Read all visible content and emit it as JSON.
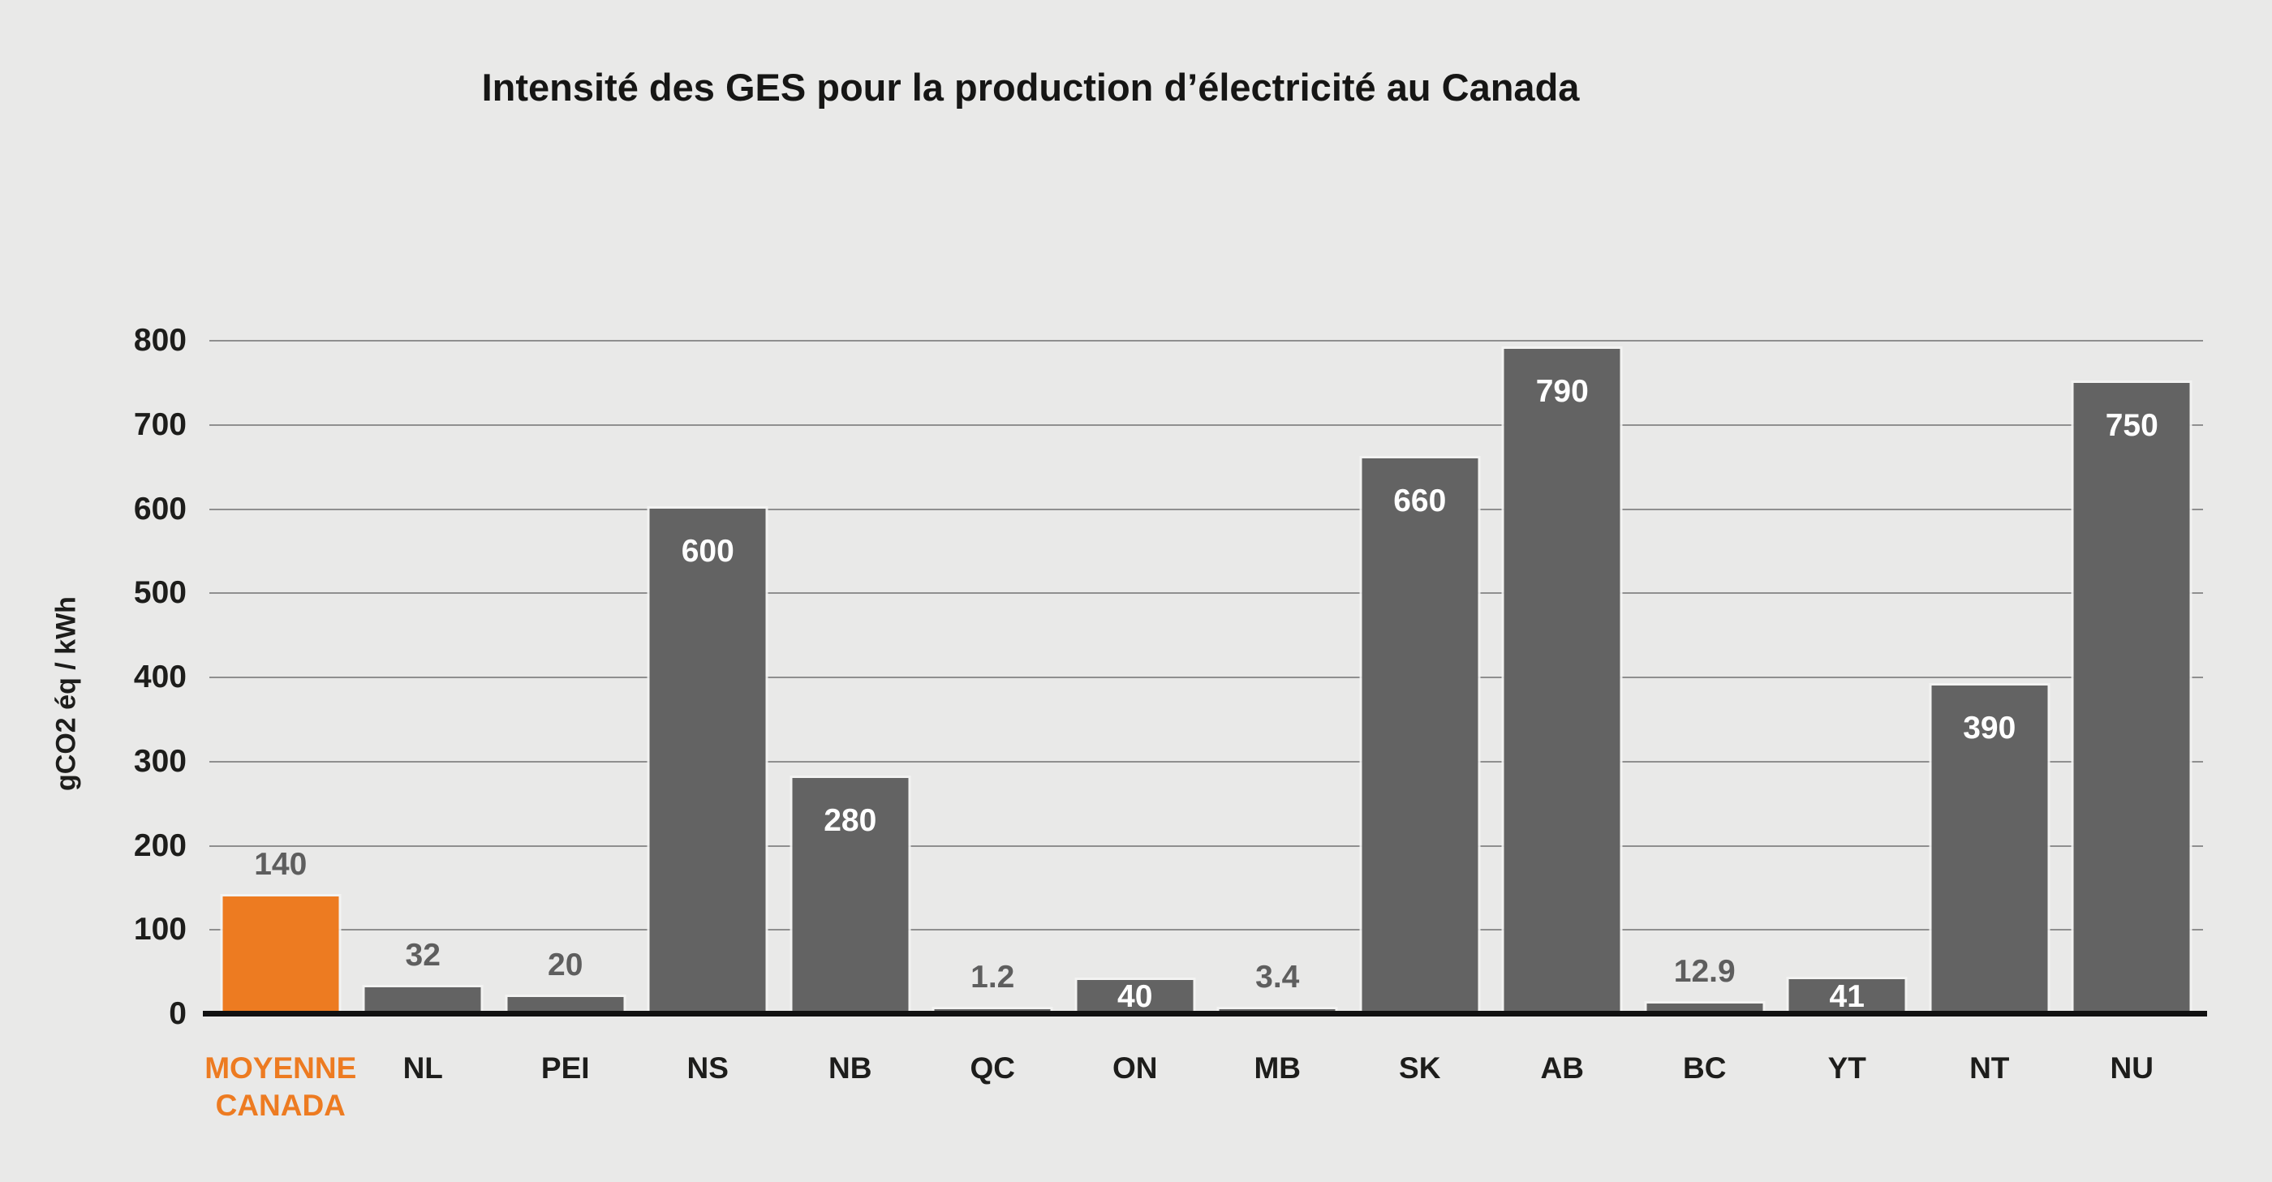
{
  "chart_data": {
    "type": "bar",
    "title": "Intensité des GES pour la production d’électricité au Canada",
    "xlabel": "",
    "ylabel": "gCO2 éq / kWh",
    "ylim": [
      0,
      800
    ],
    "yticks": [
      0,
      100,
      200,
      300,
      400,
      500,
      600,
      700,
      800
    ],
    "grid": true,
    "legend_position": "none",
    "categories": [
      "MOYENNE CANADA",
      "NL",
      "PEI",
      "NS",
      "NB",
      "QC",
      "ON",
      "MB",
      "SK",
      "AB",
      "BC",
      "YT",
      "NT",
      "NU"
    ],
    "values": [
      140,
      32,
      20,
      600,
      280,
      1.2,
      40,
      3.4,
      660,
      790,
      12.9,
      41,
      390,
      750
    ],
    "bars": [
      {
        "category": "MOYENNE CANADA",
        "label_lines": "MOYENNE\nCANADA",
        "value": 140,
        "display": "140",
        "highlight": true,
        "value_label_position": "above"
      },
      {
        "category": "NL",
        "label_lines": "NL",
        "value": 32,
        "display": "32",
        "highlight": false,
        "value_label_position": "above"
      },
      {
        "category": "PEI",
        "label_lines": "PEI",
        "value": 20,
        "display": "20",
        "highlight": false,
        "value_label_position": "above"
      },
      {
        "category": "NS",
        "label_lines": "NS",
        "value": 600,
        "display": "600",
        "highlight": false,
        "value_label_position": "inside"
      },
      {
        "category": "NB",
        "label_lines": "NB",
        "value": 280,
        "display": "280",
        "highlight": false,
        "value_label_position": "inside"
      },
      {
        "category": "QC",
        "label_lines": "QC",
        "value": 1.2,
        "display": "1.2",
        "highlight": false,
        "value_label_position": "above"
      },
      {
        "category": "ON",
        "label_lines": "ON",
        "value": 40,
        "display": "40",
        "highlight": false,
        "value_label_position": "inside"
      },
      {
        "category": "MB",
        "label_lines": "MB",
        "value": 3.4,
        "display": "3.4",
        "highlight": false,
        "value_label_position": "above"
      },
      {
        "category": "SK",
        "label_lines": "SK",
        "value": 660,
        "display": "660",
        "highlight": false,
        "value_label_position": "inside"
      },
      {
        "category": "AB",
        "label_lines": "AB",
        "value": 790,
        "display": "790",
        "highlight": false,
        "value_label_position": "inside"
      },
      {
        "category": "BC",
        "label_lines": "BC",
        "value": 12.9,
        "display": "12.9",
        "highlight": false,
        "value_label_position": "above"
      },
      {
        "category": "YT",
        "label_lines": "YT",
        "value": 41,
        "display": "41",
        "highlight": false,
        "value_label_position": "inside"
      },
      {
        "category": "NT",
        "label_lines": "NT",
        "value": 390,
        "display": "390",
        "highlight": false,
        "value_label_position": "inside"
      },
      {
        "category": "NU",
        "label_lines": "NU",
        "value": 750,
        "display": "750",
        "highlight": false,
        "value_label_position": "inside"
      }
    ],
    "colors": {
      "background": "#e9e9e8",
      "bar": "#636363",
      "highlight_bar": "#ed7b21",
      "gridline": "#8f8f8f",
      "baseline": "#111111",
      "tick_text": "#1d1d1b",
      "value_label_above": "#5e5e5e",
      "value_label_inside": "#ffffff",
      "title_text": "#161615"
    }
  }
}
